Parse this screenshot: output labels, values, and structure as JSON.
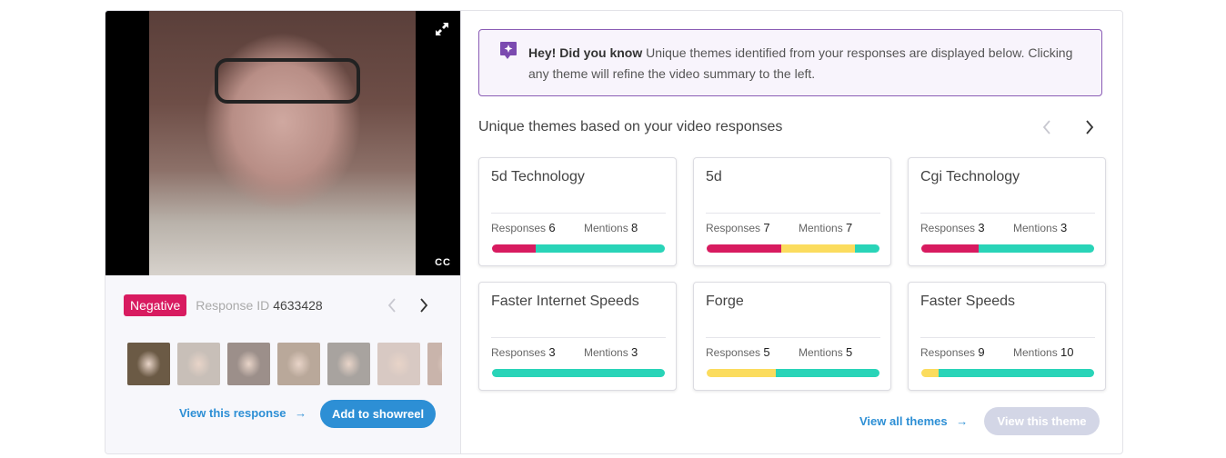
{
  "video": {
    "cc_label": "CC",
    "expand_icon": "expand-diagonal-icon"
  },
  "response": {
    "sentiment": "Negative",
    "sentiment_color": "#d81b60",
    "id_label": "Response ID",
    "id_value": "4633428"
  },
  "thumbnails": [
    "#6b5a45",
    "#c8bfb8",
    "#9c8f8a",
    "#b9a89a",
    "#a8a39f",
    "#d8c9c3",
    "#c9b4ab"
  ],
  "actions": {
    "view_response": "View this response",
    "add_showreel": "Add to showreel",
    "view_all_themes": "View all themes",
    "view_theme": "View this theme"
  },
  "tip": {
    "bold": "Hey! Did you know",
    "text": " Unique themes identified from your responses are displayed below. Clicking any theme will refine the video summary to the left."
  },
  "themes_title": "Unique themes based on your video responses",
  "colors": {
    "negative": "#d81b60",
    "neutral": "#fbdc5e",
    "positive": "#29d4b8",
    "accent": "#2d8fd5"
  },
  "themes": [
    {
      "name": "5d Technology",
      "responses_label": "Responses",
      "responses": "6",
      "mentions_label": "Mentions",
      "mentions": "8",
      "segments": [
        0.25,
        0,
        0.75
      ]
    },
    {
      "name": "5d",
      "responses_label": "Responses",
      "responses": "7",
      "mentions_label": "Mentions",
      "mentions": "7",
      "segments": [
        0.43,
        0.43,
        0.14
      ]
    },
    {
      "name": "Cgi Technology",
      "responses_label": "Responses",
      "responses": "3",
      "mentions_label": "Mentions",
      "mentions": "3",
      "segments": [
        0.33,
        0,
        0.67
      ]
    },
    {
      "name": "Faster Internet Speeds",
      "responses_label": "Responses",
      "responses": "3",
      "mentions_label": "Mentions",
      "mentions": "3",
      "segments": [
        0,
        0,
        1
      ]
    },
    {
      "name": "Forge",
      "responses_label": "Responses",
      "responses": "5",
      "mentions_label": "Mentions",
      "mentions": "5",
      "segments": [
        0,
        0.4,
        0.6
      ]
    },
    {
      "name": "Faster Speeds",
      "responses_label": "Responses",
      "responses": "9",
      "mentions_label": "Mentions",
      "mentions": "10",
      "segments": [
        0,
        0.1,
        0.9
      ]
    }
  ]
}
